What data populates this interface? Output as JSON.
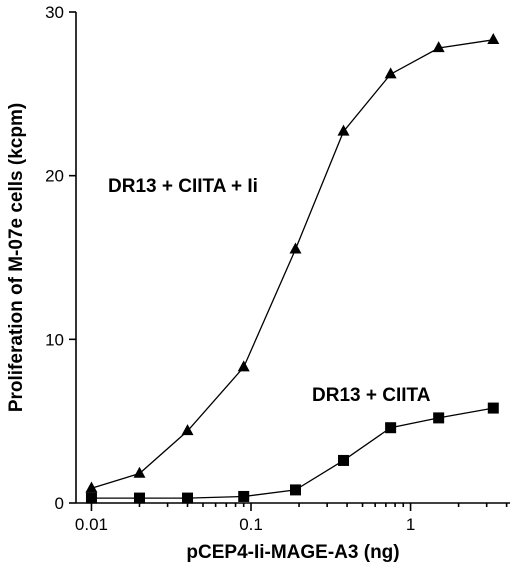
{
  "chart_data": {
    "type": "line",
    "xlabel": "pCEP4-Ii-MAGE-A3 (ng)",
    "ylabel": "Proliferation of M-07e cells (kcpm)",
    "x_scale": "log",
    "xlim": [
      0.008,
      4.2
    ],
    "ylim": [
      0,
      30
    ],
    "x_ticks": [
      0.01,
      0.1,
      1
    ],
    "x_tick_labels": [
      "0.01",
      "0.1",
      "1"
    ],
    "y_ticks": [
      0,
      10,
      20,
      30
    ],
    "y_tick_labels": [
      "0",
      "10",
      "20",
      "30"
    ],
    "grid": false,
    "series": [
      {
        "name": "DR13 + CIITA + Ii",
        "marker": "triangle",
        "x": [
          0.01,
          0.02,
          0.04,
          0.09,
          0.19,
          0.38,
          0.75,
          1.5,
          3.3
        ],
        "y": [
          0.9,
          1.8,
          4.4,
          8.3,
          15.5,
          22.7,
          26.2,
          27.8,
          28.3
        ]
      },
      {
        "name": "DR13 + CIITA",
        "marker": "square",
        "x": [
          0.01,
          0.02,
          0.04,
          0.09,
          0.19,
          0.38,
          0.75,
          1.5,
          3.3
        ],
        "y": [
          0.3,
          0.3,
          0.3,
          0.4,
          0.8,
          2.6,
          4.6,
          5.2,
          5.8
        ]
      }
    ]
  }
}
